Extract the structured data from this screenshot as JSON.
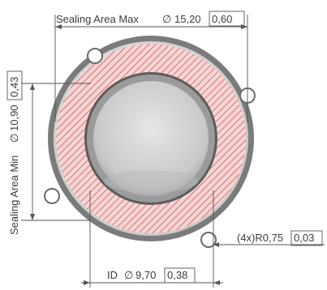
{
  "dimensions": {
    "sealing_area_max": {
      "label": "Sealing Area Max",
      "symbol": "∅",
      "value": "15,20",
      "alt_value": "0,60"
    },
    "sealing_area_min": {
      "label": "Sealing Area Min",
      "symbol": "∅",
      "value": "10,90",
      "alt_value": "0,43"
    },
    "inner_diameter": {
      "label": "ID",
      "symbol": "∅",
      "value": "9,70",
      "alt_value": "0,38"
    },
    "notch_radius": {
      "label": "(4x)R0,75",
      "alt_value": "0,03"
    }
  },
  "colors": {
    "outer_ring": "#7b7b7b",
    "face": "#d9d9d9",
    "sealing_hatch": "#e25252",
    "inner_rim": "#6c6c6c",
    "bore": "#cfcfcf",
    "dimension_line": "#555555",
    "text": "#3b3b3b"
  }
}
